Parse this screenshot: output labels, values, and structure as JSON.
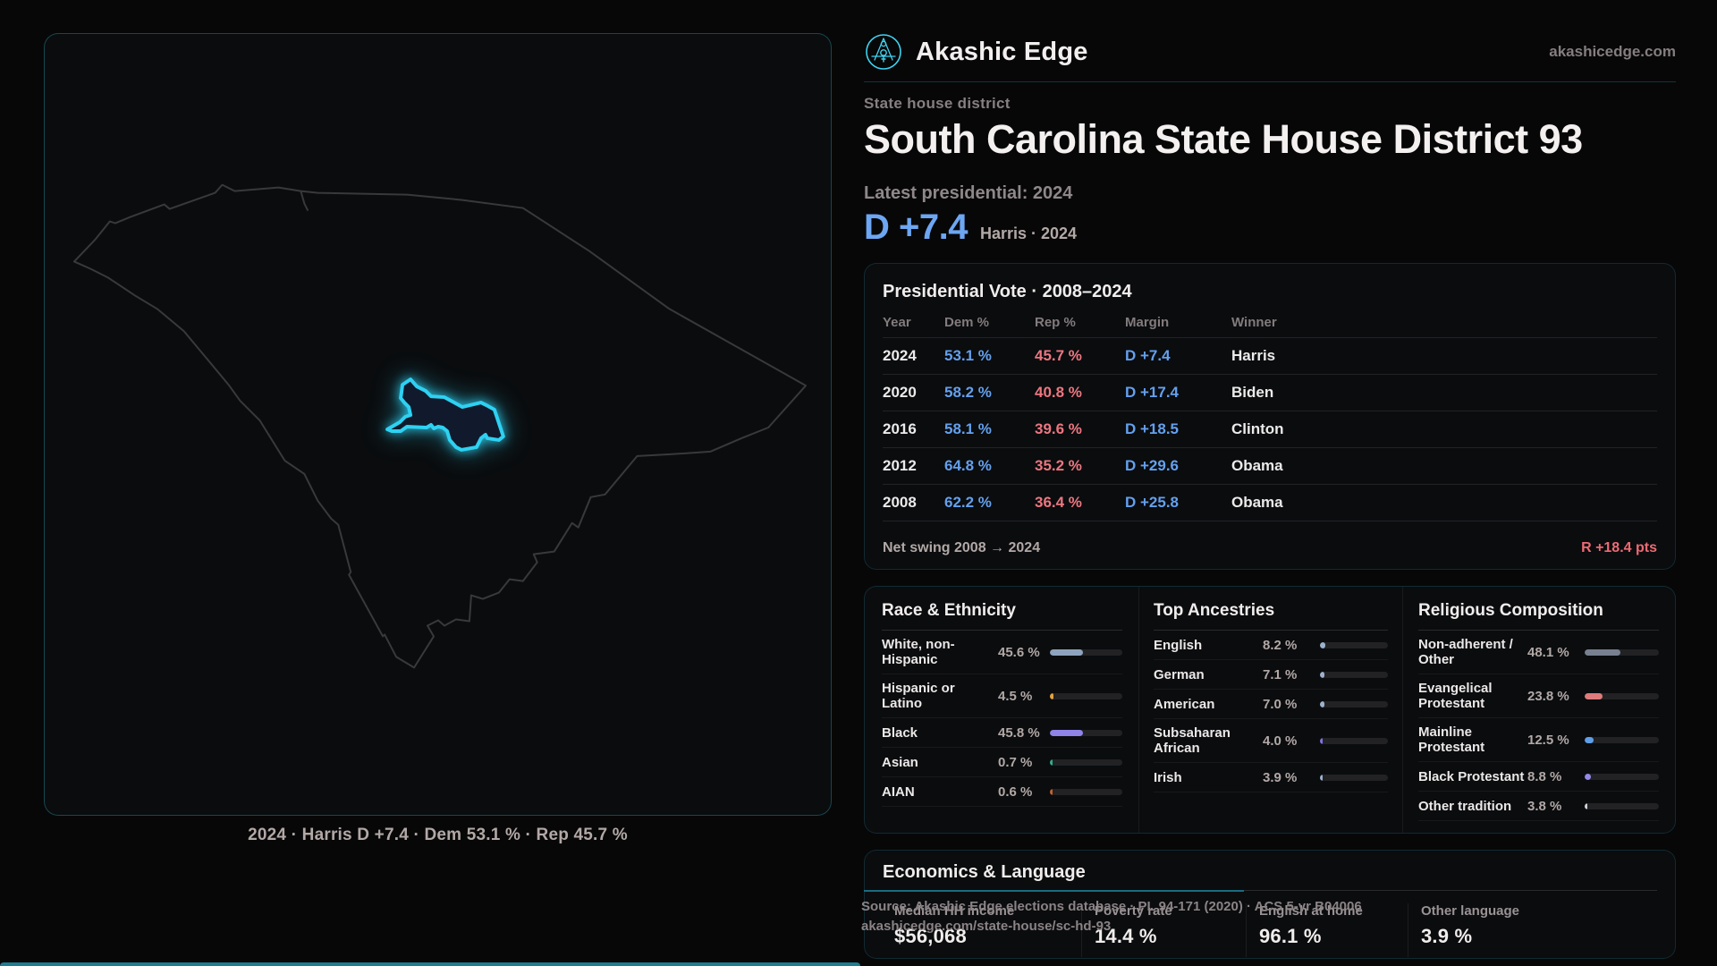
{
  "site": {
    "brand": "Akashic Edge",
    "domain": "akashicedge.com"
  },
  "header": {
    "kicker": "State house district",
    "title": "South Carolina State House District 93",
    "latest_label": "Latest presidential: 2024",
    "headline_margin": "D +7.4",
    "headline_sub": "Harris · 2024"
  },
  "map": {
    "caption": "2024 · Harris D +7.4 · Dem 53.1 % · Rep 45.7 %",
    "district_color": "#2ed1f2",
    "state_outline_color": "#39393b"
  },
  "colors": {
    "accent": "#2ed1f2",
    "dem_blue": "#64a0ee",
    "rep_red": "#ec7780",
    "swing_red": "#ee6b74"
  },
  "presidential": {
    "title": "Presidential Vote · 2008–2024",
    "columns": [
      "Year",
      "Dem %",
      "Rep %",
      "Margin",
      "Winner"
    ],
    "rows": [
      {
        "year": "2024",
        "dem": "53.1 %",
        "rep": "45.7 %",
        "margin": "D +7.4",
        "winner": "Harris"
      },
      {
        "year": "2020",
        "dem": "58.2 %",
        "rep": "40.8 %",
        "margin": "D +17.4",
        "winner": "Biden"
      },
      {
        "year": "2016",
        "dem": "58.1 %",
        "rep": "39.6 %",
        "margin": "D +18.5",
        "winner": "Clinton"
      },
      {
        "year": "2012",
        "dem": "64.8 %",
        "rep": "35.2 %",
        "margin": "D +29.6",
        "winner": "Obama"
      },
      {
        "year": "2008",
        "dem": "62.2 %",
        "rep": "36.4 %",
        "margin": "D +25.8",
        "winner": "Obama"
      }
    ],
    "net_swing_label": "Net swing 2008 → 2024",
    "net_swing_value": "R +18.4 pts"
  },
  "demographics": {
    "race": {
      "title": "Race & Ethnicity",
      "rows": [
        {
          "label": "White, non-Hispanic",
          "value_label": "45.6 %",
          "pct": 45.6,
          "color": "#8ea3bd"
        },
        {
          "label": "Hispanic or Latino",
          "value_label": "4.5 %",
          "pct": 4.5,
          "color": "#e2a23e"
        },
        {
          "label": "Black",
          "value_label": "45.8 %",
          "pct": 45.8,
          "color": "#8f83e8"
        },
        {
          "label": "Asian",
          "value_label": "0.7 %",
          "pct": 0.7,
          "color": "#2fae8f"
        },
        {
          "label": "AIAN",
          "value_label": "0.6 %",
          "pct": 0.6,
          "color": "#c2622f"
        }
      ]
    },
    "ancestries": {
      "title": "Top Ancestries",
      "rows": [
        {
          "label": "English",
          "value_label": "8.2 %",
          "pct": 8.2,
          "color": "#9db1cf"
        },
        {
          "label": "German",
          "value_label": "7.1 %",
          "pct": 7.1,
          "color": "#9db1cf"
        },
        {
          "label": "American",
          "value_label": "7.0 %",
          "pct": 7.0,
          "color": "#9db1cf"
        },
        {
          "label": "Subsaharan African",
          "value_label": "4.0 %",
          "pct": 4.0,
          "color": "#7f74e0"
        },
        {
          "label": "Irish",
          "value_label": "3.9 %",
          "pct": 3.9,
          "color": "#9db1cf"
        }
      ]
    },
    "religion": {
      "title": "Religious Composition",
      "rows": [
        {
          "label": "Non-adherent / Other",
          "value_label": "48.1 %",
          "pct": 48.1,
          "color": "#76808f"
        },
        {
          "label": "Evangelical Protestant",
          "value_label": "23.8 %",
          "pct": 23.8,
          "color": "#df7b7b"
        },
        {
          "label": "Mainline Protestant",
          "value_label": "12.5 %",
          "pct": 12.5,
          "color": "#5f9ee8"
        },
        {
          "label": "Black Protestant",
          "value_label": "8.8 %",
          "pct": 8.8,
          "color": "#9488ea"
        },
        {
          "label": "Other tradition",
          "value_label": "3.8 %",
          "pct": 3.8,
          "color": "#cfd2d6"
        }
      ]
    }
  },
  "economics": {
    "title": "Economics & Language",
    "stats": [
      {
        "label": "Median HH income",
        "value": "$56,068"
      },
      {
        "label": "Poverty rate",
        "value": "14.4 %"
      },
      {
        "label": "English at home",
        "value": "96.1 %"
      },
      {
        "label": "Other language",
        "value": "3.9 %"
      }
    ]
  },
  "footer": {
    "line1": "Source: Akashic Edge elections database · PL 94-171 (2020) · ACS 5-yr B04006",
    "line2": "akashicedge.com/state-house/sc-hd-93"
  },
  "chart_data": [
    {
      "type": "table",
      "title": "Presidential Vote · 2008–2024",
      "columns": [
        "Year",
        "Dem %",
        "Rep %",
        "Margin",
        "Winner"
      ],
      "rows": [
        [
          2024,
          53.1,
          45.7,
          "D +7.4",
          "Harris"
        ],
        [
          2020,
          58.2,
          40.8,
          "D +17.4",
          "Biden"
        ],
        [
          2016,
          58.1,
          39.6,
          "D +18.5",
          "Clinton"
        ],
        [
          2012,
          64.8,
          35.2,
          "D +29.6",
          "Obama"
        ],
        [
          2008,
          62.2,
          36.4,
          "D +25.8",
          "Obama"
        ]
      ],
      "footer": {
        "label": "Net swing 2008 → 2024",
        "value": "R +18.4 pts"
      }
    },
    {
      "type": "bar",
      "title": "Race & Ethnicity",
      "categories": [
        "White, non-Hispanic",
        "Hispanic or Latino",
        "Black",
        "Asian",
        "AIAN"
      ],
      "values": [
        45.6,
        4.5,
        45.8,
        0.7,
        0.6
      ],
      "unit": "%",
      "xlim": [
        0,
        100
      ]
    },
    {
      "type": "bar",
      "title": "Top Ancestries",
      "categories": [
        "English",
        "German",
        "American",
        "Subsaharan African",
        "Irish"
      ],
      "values": [
        8.2,
        7.1,
        7.0,
        4.0,
        3.9
      ],
      "unit": "%",
      "xlim": [
        0,
        100
      ]
    },
    {
      "type": "bar",
      "title": "Religious Composition",
      "categories": [
        "Non-adherent / Other",
        "Evangelical Protestant",
        "Mainline Protestant",
        "Black Protestant",
        "Other tradition"
      ],
      "values": [
        48.1,
        23.8,
        12.5,
        8.8,
        3.8
      ],
      "unit": "%",
      "xlim": [
        0,
        100
      ]
    }
  ]
}
